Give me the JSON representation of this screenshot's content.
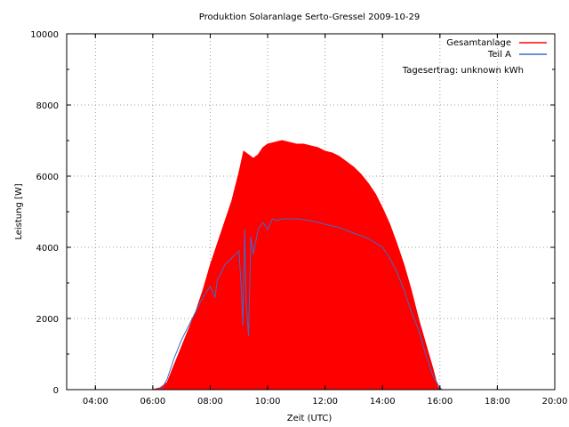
{
  "chart_data": {
    "type": "area",
    "title": "Produktion Solaranlage Serto-Gressel 2009-10-29",
    "xlabel": "Zeit (UTC)",
    "ylabel": "Leistung [W]",
    "xlim": [
      "03:00",
      "20:00"
    ],
    "ylim": [
      0,
      10000
    ],
    "x_ticks": [
      "04:00",
      "06:00",
      "08:00",
      "10:00",
      "12:00",
      "14:00",
      "16:00",
      "18:00",
      "20:00"
    ],
    "y_ticks": [
      "0",
      "2000",
      "4000",
      "6000",
      "8000",
      "10000"
    ],
    "grid": true,
    "legend_position": "top-right",
    "annotation": "Tagesertrag: unknown kWh",
    "series": [
      {
        "name": "Gesamtanlage",
        "color": "#ff0000",
        "style": "filled",
        "x": [
          "06:00",
          "06:15",
          "06:30",
          "06:45",
          "07:00",
          "07:15",
          "07:30",
          "07:45",
          "08:00",
          "08:15",
          "08:30",
          "08:45",
          "09:00",
          "09:10",
          "09:20",
          "09:30",
          "09:40",
          "09:50",
          "10:00",
          "10:15",
          "10:30",
          "10:45",
          "11:00",
          "11:15",
          "11:30",
          "11:45",
          "12:00",
          "12:15",
          "12:30",
          "12:45",
          "13:00",
          "13:15",
          "13:30",
          "13:45",
          "14:00",
          "14:15",
          "14:30",
          "14:45",
          "15:00",
          "15:15",
          "15:30",
          "15:45",
          "15:55",
          "16:00"
        ],
        "values": [
          0,
          50,
          200,
          700,
          1200,
          1700,
          2200,
          2800,
          3500,
          4100,
          4700,
          5300,
          6100,
          6700,
          6600,
          6500,
          6600,
          6800,
          6900,
          6950,
          7000,
          6950,
          6900,
          6900,
          6850,
          6800,
          6700,
          6650,
          6550,
          6400,
          6250,
          6050,
          5800,
          5500,
          5100,
          4650,
          4100,
          3500,
          2800,
          2000,
          1300,
          600,
          100,
          0
        ]
      },
      {
        "name": "Teil A",
        "color": "#3a6ec8",
        "style": "line",
        "x": [
          "06:00",
          "06:10",
          "06:20",
          "06:30",
          "06:45",
          "07:00",
          "07:15",
          "07:30",
          "07:45",
          "08:00",
          "08:10",
          "08:15",
          "08:20",
          "08:30",
          "08:45",
          "09:00",
          "09:05",
          "09:08",
          "09:12",
          "09:15",
          "09:20",
          "09:25",
          "09:30",
          "09:40",
          "09:50",
          "10:00",
          "10:10",
          "10:20",
          "10:30",
          "11:00",
          "11:30",
          "12:00",
          "12:30",
          "13:00",
          "13:30",
          "14:00",
          "14:15",
          "14:30",
          "14:45",
          "15:00",
          "15:15",
          "15:30",
          "15:45",
          "16:00",
          "16:05"
        ],
        "values": [
          0,
          0,
          50,
          300,
          900,
          1400,
          1800,
          2200,
          2600,
          2900,
          2600,
          3100,
          3200,
          3500,
          3700,
          3900,
          2800,
          1800,
          4500,
          2500,
          1500,
          4300,
          3800,
          4500,
          4700,
          4500,
          4800,
          4750,
          4800,
          4800,
          4750,
          4650,
          4550,
          4400,
          4250,
          4000,
          3700,
          3300,
          2800,
          2200,
          1700,
          1000,
          400,
          50,
          0
        ]
      }
    ]
  }
}
